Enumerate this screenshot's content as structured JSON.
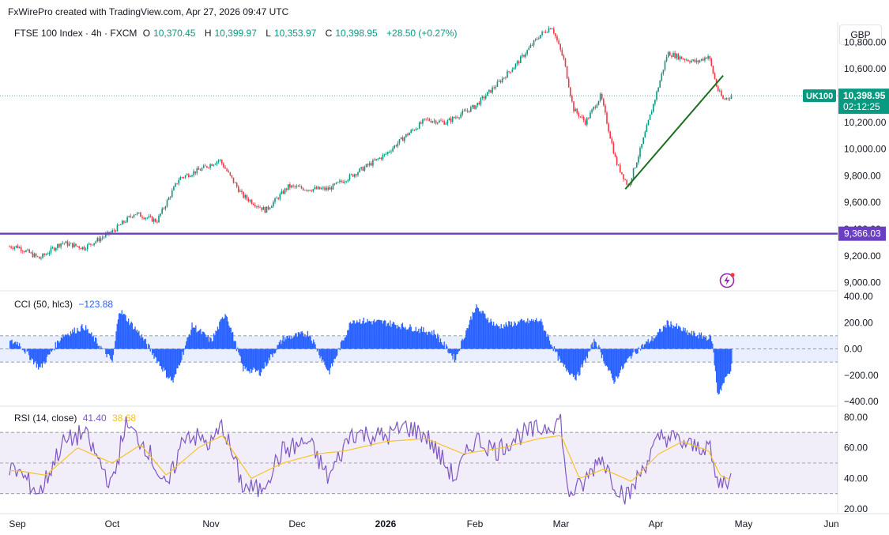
{
  "header": {
    "attribution": "FxWirePro created with TradingView.com, Apr 27, 2026 09:47 UTC"
  },
  "legend": {
    "symbol": "FTSE 100 Index · 4h · FXCM",
    "open_label": "O",
    "open": "10,370.45",
    "high_label": "H",
    "high": "10,399.97",
    "low_label": "L",
    "low": "10,353.97",
    "close_label": "C",
    "close": "10,398.95",
    "change": "+28.50 (+0.27%)"
  },
  "currency": "GBP",
  "price_axis": {
    "ticks": [
      "10,800.00",
      "10,600.00",
      "10,400.00",
      "10,200.00",
      "10,000.00",
      "9,800.00",
      "9,600.00",
      "9,400.00",
      "9,200.00",
      "9,000.00"
    ],
    "symbol_tag": "UK100",
    "last_price": "10,398.95",
    "countdown": "02:12:25",
    "level_label": "9,366.03"
  },
  "time_axis": {
    "labels": [
      "Sep",
      "Oct",
      "Nov",
      "Dec",
      "2026",
      "Feb",
      "Mar",
      "Apr",
      "May",
      "Jun"
    ]
  },
  "cci": {
    "title": "CCI (50, hlc3)",
    "value": "−123.88",
    "ticks": [
      "400.00",
      "200.00",
      "0.00",
      "−200.00",
      "−400.00"
    ]
  },
  "rsi": {
    "title": "RSI (14, close)",
    "value": "41.40",
    "ma_value": "38.68",
    "ticks": [
      "80.00",
      "60.00",
      "40.00",
      "20.00"
    ]
  },
  "colors": {
    "up": "#089981",
    "down": "#f23645",
    "support": "#6b3fc1",
    "trendline": "#1b6e1b",
    "cci": "#2962ff",
    "rsi": "#7e57c2",
    "rsi_ma": "#f7c325"
  },
  "chart_data": [
    {
      "type": "candlestick",
      "title": "FTSE 100 Index · 4h · FXCM",
      "ylim": [
        8950,
        10950
      ],
      "x": [
        "Sep",
        "Oct",
        "Nov",
        "Dec",
        "2026",
        "Feb",
        "Mar",
        "Apr",
        "May",
        "Jun"
      ],
      "close_path": [
        [
          "Sep 1",
          9270
        ],
        [
          "Sep 8",
          9180
        ],
        [
          "Sep 15",
          9300
        ],
        [
          "Sep 22",
          9260
        ],
        [
          "Oct 1",
          9380
        ],
        [
          "Oct 8",
          9520
        ],
        [
          "Oct 15",
          9460
        ],
        [
          "Oct 22",
          9780
        ],
        [
          "Oct 29",
          9850
        ],
        [
          "Nov 4",
          9920
        ],
        [
          "Nov 12",
          9650
        ],
        [
          "Nov 20",
          9540
        ],
        [
          "Nov 28",
          9720
        ],
        [
          "Dec 5",
          9700
        ],
        [
          "Dec 12",
          9700
        ],
        [
          "Dec 20",
          9800
        ],
        [
          "Jan 1",
          9960
        ],
        [
          "Jan 8",
          10100
        ],
        [
          "Jan 15",
          10220
        ],
        [
          "Jan 22",
          10200
        ],
        [
          "Feb 1",
          10320
        ],
        [
          "Feb 8",
          10480
        ],
        [
          "Feb 15",
          10650
        ],
        [
          "Feb 22",
          10850
        ],
        [
          "Feb 26",
          10920
        ],
        [
          "Mar 2",
          10660
        ],
        [
          "Mar 5",
          10300
        ],
        [
          "Mar 9",
          10200
        ],
        [
          "Mar 14",
          10400
        ],
        [
          "Mar 19",
          9900
        ],
        [
          "Mar 23",
          9720
        ],
        [
          "Mar 27",
          10000
        ],
        [
          "Apr 1",
          10400
        ],
        [
          "Apr 5",
          10720
        ],
        [
          "Apr 10",
          10680
        ],
        [
          "Apr 15",
          10650
        ],
        [
          "Apr 19",
          10700
        ],
        [
          "Apr 22",
          10450
        ],
        [
          "Apr 24",
          10370
        ],
        [
          "Apr 27",
          10398.95
        ]
      ],
      "support_level": 9366.03,
      "trendline": {
        "start": [
          "Mar 22",
          9700
        ],
        "end": [
          "Apr 24",
          10550
        ]
      },
      "last_price": 10398.95
    },
    {
      "type": "histogram",
      "title": "CCI (50, hlc3)",
      "ylim": [
        -440,
        400
      ],
      "bands": [
        -100,
        100
      ],
      "last_value": -123.88,
      "path": [
        [
          "Sep 1",
          50
        ],
        [
          "Sep 8",
          -150
        ],
        [
          "Sep 15",
          100
        ],
        [
          "Sep 22",
          170
        ],
        [
          "Oct 1",
          -100
        ],
        [
          "Oct 3",
          300
        ],
        [
          "Oct 10",
          100
        ],
        [
          "Oct 18",
          -200
        ],
        [
          "Oct 20",
          -250
        ],
        [
          "Oct 26",
          180
        ],
        [
          "Nov 1",
          60
        ],
        [
          "Nov 6",
          280
        ],
        [
          "Nov 12",
          -150
        ],
        [
          "Nov 18",
          -180
        ],
        [
          "Nov 26",
          80
        ],
        [
          "Dec 5",
          120
        ],
        [
          "Dec 12",
          -180
        ],
        [
          "Dec 20",
          220
        ],
        [
          "Jan 1",
          200
        ],
        [
          "Jan 10",
          160
        ],
        [
          "Jan 18",
          120
        ],
        [
          "Jan 25",
          -80
        ],
        [
          "Feb 1",
          320
        ],
        [
          "Feb 8",
          170
        ],
        [
          "Feb 15",
          200
        ],
        [
          "Feb 22",
          220
        ],
        [
          "Mar 1",
          -120
        ],
        [
          "Mar 6",
          -220
        ],
        [
          "Mar 12",
          70
        ],
        [
          "Mar 18",
          -250
        ],
        [
          "Mar 24",
          -40
        ],
        [
          "Apr 1",
          100
        ],
        [
          "Apr 5",
          200
        ],
        [
          "Apr 12",
          120
        ],
        [
          "Apr 20",
          80
        ],
        [
          "Apr 22",
          -350
        ],
        [
          "Apr 27",
          -123.88
        ]
      ]
    },
    {
      "type": "line",
      "title": "RSI (14, close)",
      "ylim": [
        18,
        84
      ],
      "bands": [
        30,
        50,
        70
      ],
      "series": [
        {
          "name": "RSI",
          "last": 41.4,
          "path": [
            [
              "Sep 1",
              45
            ],
            [
              "Sep 8",
              30
            ],
            [
              "Sep 15",
              62
            ],
            [
              "Sep 22",
              70
            ],
            [
              "Oct 1",
              35
            ],
            [
              "Oct 5",
              75
            ],
            [
              "Oct 12",
              60
            ],
            [
              "Oct 18",
              32
            ],
            [
              "Oct 24",
              70
            ],
            [
              "Nov 1",
              62
            ],
            [
              "Nov 5",
              75
            ],
            [
              "Nov 12",
              35
            ],
            [
              "Nov 18",
              32
            ],
            [
              "Nov 26",
              58
            ],
            [
              "Dec 5",
              64
            ],
            [
              "Dec 12",
              40
            ],
            [
              "Dec 20",
              70
            ],
            [
              "Jan 1",
              67
            ],
            [
              "Jan 8",
              74
            ],
            [
              "Jan 15",
              68
            ],
            [
              "Jan 25",
              40
            ],
            [
              "Feb 1",
              66
            ],
            [
              "Feb 8",
              58
            ],
            [
              "Feb 15",
              68
            ],
            [
              "Feb 22",
              72
            ],
            [
              "Mar 1",
              78
            ],
            [
              "Mar 3",
              30
            ],
            [
              "Mar 8",
              35
            ],
            [
              "Mar 14",
              55
            ],
            [
              "Mar 19",
              35
            ],
            [
              "Mar 23",
              28
            ],
            [
              "Mar 28",
              48
            ],
            [
              "Apr 3",
              68
            ],
            [
              "Apr 8",
              65
            ],
            [
              "Apr 14",
              60
            ],
            [
              "Apr 19",
              62
            ],
            [
              "Apr 22",
              36
            ],
            [
              "Apr 27",
              41.4
            ]
          ]
        },
        {
          "name": "RSI-based MA",
          "last": 38.68,
          "path": [
            [
              "Sep 1",
              45
            ],
            [
              "Sep 10",
              42
            ],
            [
              "Sep 20",
              60
            ],
            [
              "Oct 1",
              50
            ],
            [
              "Oct 10",
              62
            ],
            [
              "Oct 18",
              42
            ],
            [
              "Oct 28",
              60
            ],
            [
              "Nov 5",
              68
            ],
            [
              "Nov 15",
              40
            ],
            [
              "Nov 26",
              50
            ],
            [
              "Dec 8",
              56
            ],
            [
              "Dec 18",
              58
            ],
            [
              "Jan 1",
              64
            ],
            [
              "Jan 15",
              66
            ],
            [
              "Jan 28",
              56
            ],
            [
              "Feb 10",
              60
            ],
            [
              "Feb 22",
              66
            ],
            [
              "Mar 1",
              68
            ],
            [
              "Mar 7",
              40
            ],
            [
              "Mar 15",
              46
            ],
            [
              "Mar 24",
              38
            ],
            [
              "Apr 2",
              56
            ],
            [
              "Apr 10",
              64
            ],
            [
              "Apr 19",
              58
            ],
            [
              "Apr 23",
              42
            ],
            [
              "Apr 27",
              38.68
            ]
          ]
        }
      ]
    }
  ]
}
